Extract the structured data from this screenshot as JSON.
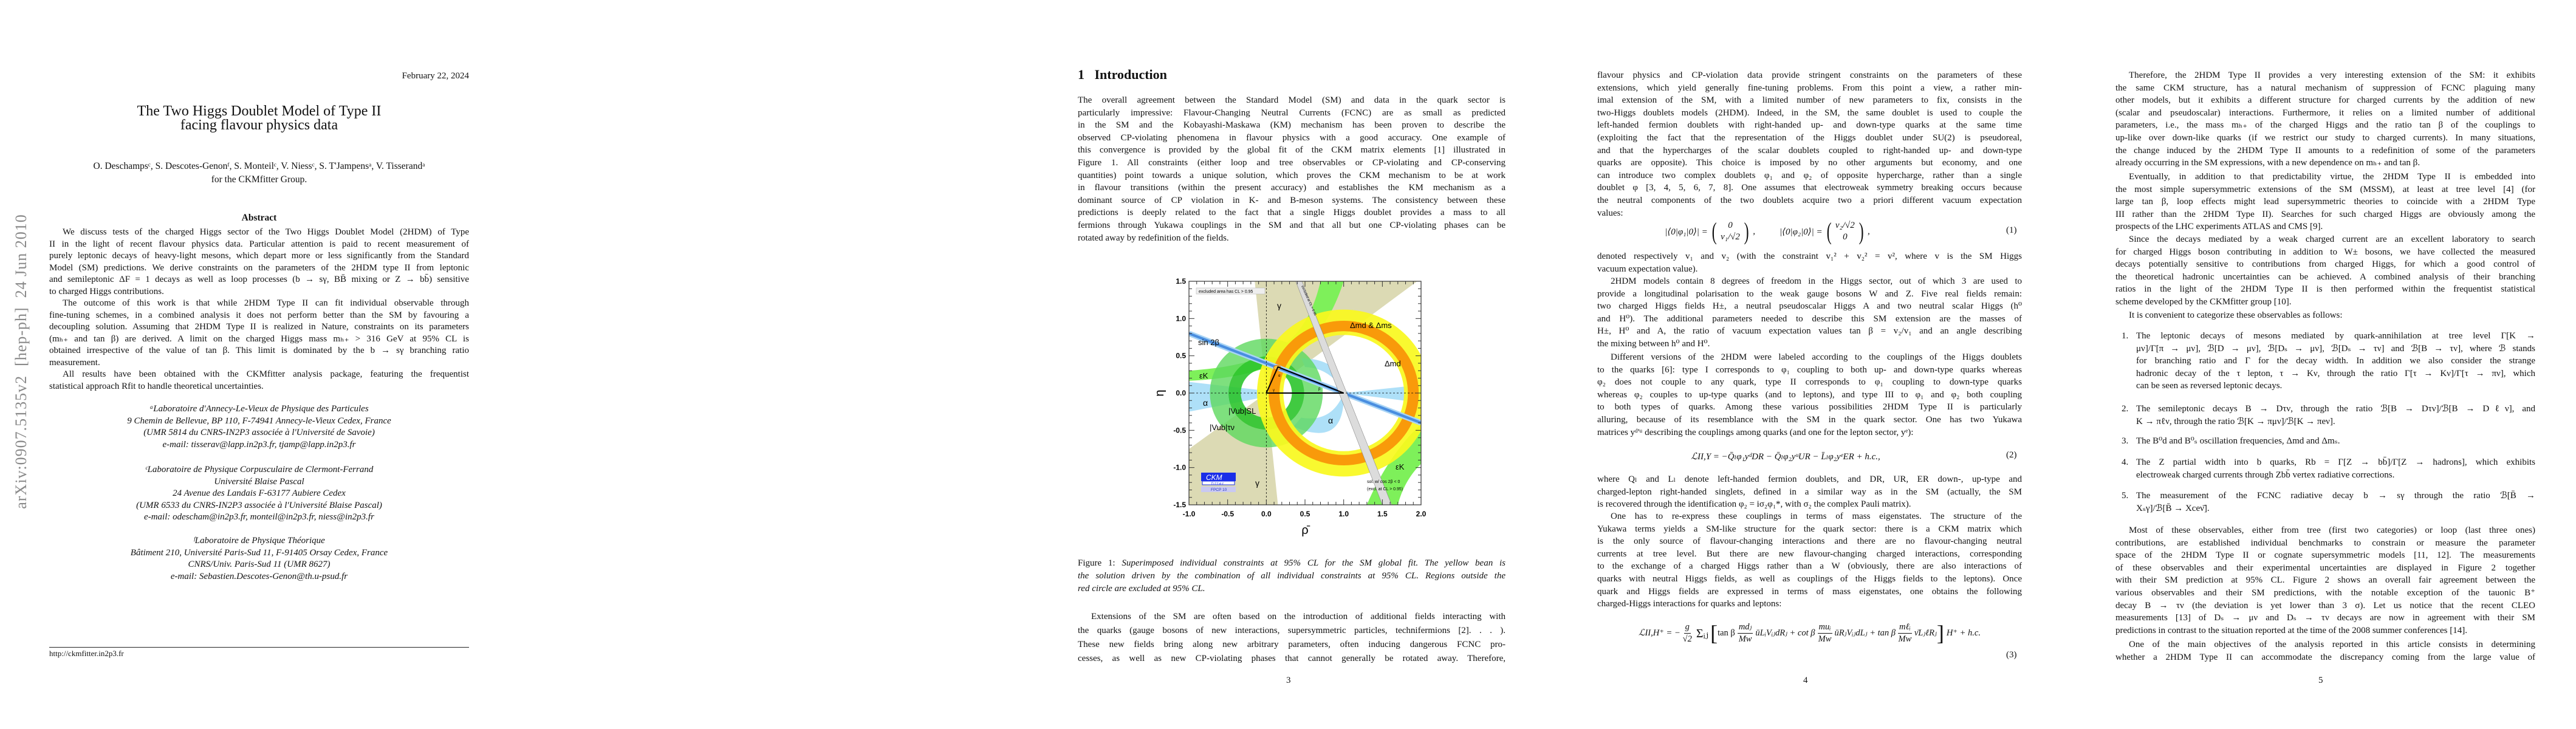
{
  "page1": {
    "date": "February 22, 2024",
    "title_lines": [
      "The Two Higgs Doublet Model of Type II",
      "facing flavour physics data"
    ],
    "authors": "O. Deschampsᶜ, S. Descotes-Genonᶠ, S. Monteilᶜ, V. Niessᶜ, S. T'Jampensᵃ, V. Tisserandᵃ",
    "group": "for the CKMfitter Group.",
    "abstract_heading": "Abstract",
    "abstract_lines": [
      "We discuss tests of the charged Higgs sector of the Two Higgs Doublet Model (2HDM) of Type",
      "II in the light of recent flavour physics data. Particular attention is paid to recent measurement of",
      "purely leptonic decays of heavy-light mesons, which depart more or less significantly from the Standard",
      "Model (SM) predictions. We derive constraints on the parameters of the 2HDM type II from leptonic",
      "and semileptonic ΔF = 1 decays as well as loop processes (b → sγ, BB̄ mixing or Z → bb̄) sensitive",
      "to charged Higgs contributions."
    ],
    "abstract_lines_2": [
      "The outcome of this work is that while 2HDM Type II can fit individual observable through",
      "fine-tuning schemes, in a combined analysis it does not perform better than the SM by favouring a",
      "decoupling solution. Assuming that 2HDM Type II is realized in Nature, constraints on its parameters",
      "(mₕ₊ and tan β) are derived. A limit on the charged Higgs mass mₕ₊ > 316 GeV at 95% CL is",
      "obtained irrespective of the value of tan β. This limit is dominated by the b → sγ branching ratio",
      "measurement."
    ],
    "abstract_lines_3": [
      "All results have been obtained with the CKMfitter analysis package, featuring the frequentist",
      "statistical approach Rfit to handle theoretical uncertainties."
    ],
    "affiliation_a": [
      "ᵃLaboratoire d'Annecy-Le-Vieux de Physique des Particules",
      "9 Chemin de Bellevue, BP 110, F-74941 Annecy-le-Vieux Cedex, France",
      "(UMR 5814 du CNRS-IN2P3 associée à l'Université de Savoie)",
      "e-mail: tisserav@lapp.in2p3.fr, tjamp@lapp.in2p3.fr"
    ],
    "affiliation_c": [
      "ᶜLaboratoire de Physique Corpusculaire de Clermont-Ferrand",
      "Université Blaise Pascal",
      "24 Avenue des Landais F-63177 Aubiere Cedex",
      "(UMR 6533 du CNRS-IN2P3 associée à l'Université Blaise Pascal)",
      "e-mail: odescham@in2p3.fr, monteil@in2p3.fr, niess@in2p3.fr"
    ],
    "affiliation_f": [
      "ᶠLaboratoire de Physique Théorique",
      "Bâtiment 210, Université Paris-Sud 11, F-91405 Orsay Cedex, France",
      "CNRS/Univ. Paris-Sud 11 (UMR 8627)",
      "e-mail: Sebastien.Descotes-Genon@th.u-psud.fr"
    ],
    "footnote_url": "http://ckmfitter.in2p3.fr",
    "arxiv_stamp": "arXiv:0907.5135v2  [hep-ph]  24 Jun 2010"
  },
  "page3": {
    "section_heading": "1   Introduction",
    "intro_lines": [
      "The overall agreement between the Standard Model (SM) and data in the quark sector is",
      "particularly impressive: Flavour-Changing Neutral Currents (FCNC) are as small as predicted",
      "in the SM and the Kobayashi-Maskawa (KM) mechanism has been proven to describe the",
      "observed CP-violating phenomena in flavour physics with a good accuracy. One example of",
      "this convergence is provided by the global fit of the CKM matrix elements [1] illustrated in",
      "Figure 1. All constraints (either loop and tree observables or CP-violating and CP-conserving",
      "quantities) point towards a unique solution, which proves the CKM mechanism to be at work",
      "in flavour transitions (within the present accuracy) and establishes the KM mechanism as a",
      "dominant source of CP violation in K- and B-meson systems. The consistency between these",
      "predictions is deeply related to the fact that a single Higgs doublet provides a mass to all",
      "fermions through Yukawa couplings in the SM and that all but one CP-violating phases can be",
      "rotated away by redefinition of the fields."
    ],
    "figure": {
      "x_ticks": [
        "-1.0",
        "-0.5",
        "0.0",
        "0.5",
        "1.0",
        "1.5",
        "2.0"
      ],
      "y_ticks": [
        "1.5",
        "1.0",
        "0.5",
        "0.0",
        "-0.5",
        "-1.0",
        "-1.5"
      ],
      "xlabel": "ρ̄",
      "ylabel": "η",
      "xlim": [
        -1.0,
        2.0
      ],
      "ylim": [
        -1.5,
        1.5
      ],
      "legend_box": "excluded area has CL > 0.95",
      "label_gamma": "γ",
      "label_dm": "Δmd & Δms",
      "label_dmd": "Δmd",
      "label_sin2b": "sin 2β",
      "label_epsk": "εK",
      "label_alpha": "α",
      "label_vub_sl": "|Vub|SL",
      "label_vub_taunu": "|Vub|τν",
      "label_beta": "β",
      "grey_band_label": "excluded at CL > 0.95",
      "sol_note_1": "sol. w/ cos 2β < 0",
      "sol_note_2": "(excl. at CL > 0.95)",
      "logo_ckm": "CKM",
      "logo_fitter": "fitter",
      "logo_conf": "FPCP 10",
      "colors": {
        "gamma": "#dcdab4",
        "epsk": "#7ef05a",
        "alpha": "#aee0f8",
        "vub_tau": "#5ed85e",
        "vub_sl": "#2cc42c",
        "dm_outer": "#f8f81e",
        "dm_inner": "#f99a0a",
        "sin2b": "#4a8ee0",
        "logo": "#1a2ee8"
      }
    },
    "caption_label": "Figure 1:",
    "caption_lines": [
      " Superimposed individual constraints at 95% CL for the SM global fit. The yellow bean is",
      "the solution driven by the combination of all individual constraints at 95% CL. Regions outside the",
      "red circle are excluded at 95% CL."
    ],
    "after_lines": [
      "Extensions of the SM are often based on the introduction of additional fields interacting with",
      "the quarks (gauge bosons of new interactions, supersymmetric particles, technifermions [2]. . . ).",
      "These new fields bring along new arbitrary parameters, often inducing dangerous FCNC pro-",
      "cesses, as well as new CP-violating phases that cannot generally be rotated away. Therefore,"
    ],
    "page_number": "3"
  },
  "page4": {
    "p1_lines": [
      "flavour physics and CP-violation data provide stringent constraints on the parameters of these",
      "extensions, which yield generally fine-tuning problems. From this point a view, a rather min-",
      "imal extension of the SM, with a limited number of new parameters to fix, consists in the",
      "two-Higgs doublets models (2HDM). Indeed, in the SM, the same doublet is used to couple the",
      "left-handed fermion doublets with right-handed up- and down-type quarks at the same time",
      "(exploiting the fact that the representation of the Higgs doublet under SU(2) is pseudoreal,",
      "and that the hypercharges of the scalar doublets coupled to right-handed up- and down-type",
      "quarks are opposite). This choice is imposed by no other arguments but economy, and one",
      "can introduce two complex doublets φ₁ and φ₂ of opposite hypercharge, rather than a single",
      "doublet φ  [3, 4, 5, 6, 7, 8]. One assumes that electroweak symmetry breaking occurs because",
      "the neutral components of the two doublets acquire two a priori different vacuum expectation",
      "values:"
    ],
    "eq1": {
      "lhs1": "|⟨0|φ₁|0⟩| =",
      "m1_top": "0",
      "m1_bottom": "v₁/√2",
      "lhs2": "|⟨0|φ₂|0⟩| =",
      "m2_top": "v₂/√2",
      "m2_bottom": "0",
      "sep": ",",
      "number": "(1)"
    },
    "p2_lines": [
      "denoted respectively v₁ and v₂ (with the constraint v₁² + v₂² = v², where v is the SM Higgs",
      "vacuum expectation value)."
    ],
    "p3_lines": [
      "2HDM models contain 8 degrees of freedom in the Higgs sector, out of which 3 are used to",
      "provide a longitudinal polarisation to the weak gauge bosons W and Z. Five real fields remain:",
      "two charged Higgs fields H±, a neutral pseudoscalar Higgs A and two neutral scalar Higgs (h⁰",
      "and H⁰). The additional parameters needed to describe this SM extension are the masses of",
      "H±, H⁰ and A, the ratio of vacuum expectation values tan β = v₂/v₁ and an angle describing",
      "the mixing between h⁰ and H⁰."
    ],
    "p4_lines": [
      "Different versions of the 2HDM were labeled according to the couplings of the Higgs doublets",
      "to the quarks [6]: type I corresponds to φ₁ coupling to both up- and down-type quarks whereas",
      "φ₂ does not couple to any quark, type II corresponds to φ₁ coupling to down-type quarks",
      "whereas φ₂ couples to up-type quarks (and to leptons), and type III to φ₁ and φ₂ both coupling",
      "to both types of quarks. Among these various possibilities 2HDM Type II is particularly",
      "alluring, because of its resemblance with the SM in the quark sector. One has two Yukawa",
      "matrices yᵈ'ᵘ describing the couplings among quarks (and one for the lepton sector, yᵉ):"
    ],
    "eq2": {
      "text": "ℒII,Y = −Q̄ₗφ₁yᵈDR − Q̄ₗφ₂yᵘUR − L̄ₗφ₂yᵉER + h.c.,",
      "number": "(2)"
    },
    "p5_lines": [
      "where Qₗ and Lₗ denote left-handed fermion doublets, and DR, UR, ER down-, up-type and",
      "charged-lepton right-handed singlets, defined in a similar way as in the SM (actually, the SM",
      "is recovered through the identification φ₂ = iσ₂φ₁*, with σ₂ the complex Pauli matrix)."
    ],
    "p6_lines": [
      "One has to re-express these couplings in terms of mass eigenstates. The structure of the",
      "Yukawa terms yields a SM-like structure for the quark sector: there is a CKM matrix which",
      "is the only source of flavour-changing interactions and there are no flavour-changing neutral",
      "currents at tree level. But there are new flavour-changing charged interactions, corresponding",
      "to the exchange of a charged Higgs rather than a W (obviously, there are also interactions of",
      "quarks with neutral Higgs fields, as well as couplings of the Higgs fields to the leptons). Once",
      "quark and Higgs fields are expressed in terms of mass eigenstates, one obtains the following",
      "charged-Higgs interactions for quarks and leptons:"
    ],
    "eq3": {
      "lhs": "ℒII,H⁺ = −",
      "g_num": "g",
      "g_den": "√2",
      "sum": "Σᵢⱼ",
      "open": "[",
      "t1_pre": "tan β",
      "t1_num": "mdⱼ",
      "t1_den": "Mw",
      "t1_post": "ūLᵢVᵢⱼdRⱼ + cot β",
      "t2_num": "muᵢ",
      "t2_den": "Mw",
      "t2_post": "ūRⱼVᵢⱼdLⱼ + tan β",
      "t3_num": "mℓᵢ",
      "t3_den": "Mw",
      "t3_post": "ν̄LⱼℓRⱼ",
      "close": "]",
      "tail": "H⁺ + h.c.",
      "number": "(3)"
    },
    "page_number": "4"
  },
  "page5": {
    "p1_lines": [
      "Therefore, the 2HDM Type II provides a very interesting extension of the SM: it exhibits",
      "the same CKM structure, has a natural mechanism of suppression of FCNC plaguing many",
      "other models, but it exhibits a different structure for charged currents by the addition of new",
      "(scalar and pseudoscalar) interactions. Furthermore, it relies on a limited number of additional",
      "parameters, i.e., the mass mₕ₊ of the charged Higgs and the ratio tan β of the couplings to",
      "up-like over down-like quarks (if we restrict our study to charged currents). In many situations,",
      "the change induced by the 2HDM Type II amounts to a redefinition of some of the parameters",
      "already occurring in the SM expressions, with a new dependence on mₕ₊ and tan β."
    ],
    "p2_lines": [
      "Eventually, in addition to that predictability virtue, the 2HDM Type II is embedded into",
      "the most simple supersymmetric extensions of the SM (MSSM), at least at tree level [4] (for",
      "large tan β, loop effects might lead supersymmetric theories to coincide with a 2HDM Type",
      "III rather than the 2HDM Type II). Searches for such charged Higgs are obviously among the",
      "prospects of the LHC experiments ATLAS and CMS [9]."
    ],
    "p3_lines": [
      "Since the decays mediated by a weak charged current are an excellent laboratory to search",
      "for charged Higgs boson contributing in addition to W± bosons, we have collected the measured",
      "decays potentially sensitive to contributions from charged Higgs, for which a good control of",
      "the theoretical hadronic uncertainties can be achieved. A combined analysis of their branching",
      "ratios in the light of the 2HDM Type II is then performed within the frequentist statistical",
      "scheme developed by the CKMfitter group [10]."
    ],
    "p4_lines": [
      "It is convenient to categorize these observables as follows:"
    ],
    "list": [
      {
        "num": "1.",
        "lines": [
          "The leptonic decays of mesons mediated by quark-annihilation at tree level Γ[K →",
          "μν]/Γ[π → μν], ℬ[D → μν], ℬ[Dₛ → μν], ℬ[Dₛ → τν] and ℬ[B → τν], where ℬ stands",
          "for branching ratio and Γ for the decay width. In addition we also consider the strange",
          "hadronic decay of the τ lepton, τ → Kν, through the ratio Γ[τ → Kν]/Γ[τ → πν], which",
          "can be seen as reversed leptonic decays."
        ]
      },
      {
        "num": "2.",
        "lines": [
          "The semileptonic decays B → Dτν, through the ratio ℬ[B → Dτν]/ℬ[B → Dℓν], and",
          "K → πℓν, through the ratio ℬ[K → πμν]/ℬ[K → πeν]."
        ]
      },
      {
        "num": "3.",
        "lines": [
          "The B⁰d and B⁰ₛ oscillation frequencies, Δmd and Δmₛ."
        ]
      },
      {
        "num": "4.",
        "lines": [
          "The Z partial width into b quarks, Rb = Γ[Z → bb̄]/Γ[Z → hadrons], which exhibits",
          "electroweak charged currents through Zbb̄ vertex radiative corrections."
        ]
      },
      {
        "num": "5.",
        "lines": [
          "The measurement of the FCNC radiative decay b → sγ through the ratio ℬ[B̄ →",
          "Xₛγ]/ℬ[B̄ → Xceν̄]."
        ]
      }
    ],
    "p5_lines": [
      "Most of these observables, either from tree (first two categories) or loop (last three ones)",
      "contributions, are established individual benchmarks to constrain or measure the parameter",
      "space of the 2HDM Type II or cognate supersymmetric models [11, 12]. The measurements",
      "of these observables and their experimental uncertainties are displayed in Figure 2 together",
      "with their SM prediction at 95% CL. Figure 2 shows an overall fair agreement between the",
      "various observables and their SM predictions, with the notable exception of the tauonic B⁺",
      "decay B → τν (the deviation is yet lower than 3 σ). Let us notice that the recent CLEO",
      "measurements [13] of Dₛ → μν and Dₛ → τν decays are now in agreement with their SM",
      "predictions in contrast to the situation reported at the time of the 2008 summer conferences [14]."
    ],
    "p6_lines": [
      "One of the main objectives of the analysis reported in this article consists in determining",
      "whether a 2HDM Type II can accommodate the discrepancy coming from the large value of"
    ],
    "page_number": "5"
  }
}
